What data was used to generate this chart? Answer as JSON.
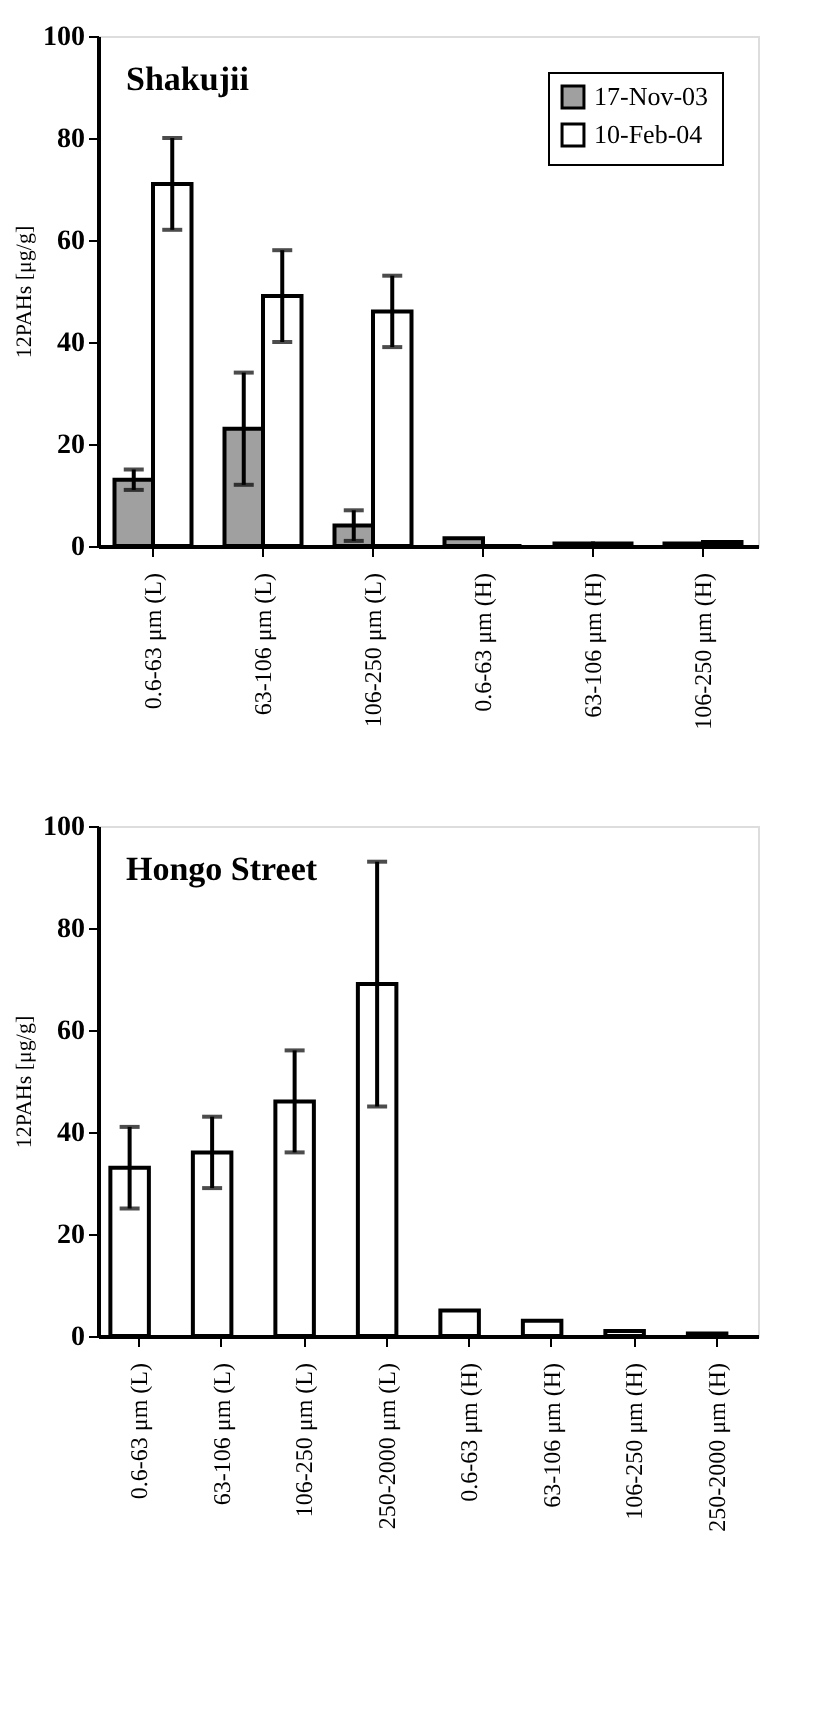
{
  "chart_data": [
    {
      "type": "bar",
      "title": "Shakujii",
      "ylabel": "12PAHs [μg/g]",
      "categories": [
        "0.6-63 μm (L)",
        "63-106 μm (L)",
        "106-250 μm (L)",
        "0.6-63 μm (H)",
        "63-106 μm (H)",
        "106-250 μm (H)"
      ],
      "series": [
        {
          "name": "17-Nov-03",
          "color": "#a0a0a0",
          "values": [
            13,
            23,
            4,
            1.5,
            0.5,
            0.5
          ],
          "errors": [
            2,
            11,
            3,
            null,
            null,
            null
          ]
        },
        {
          "name": "10-Feb-04",
          "color": "#ffffff",
          "values": [
            71,
            49,
            46,
            0,
            0.5,
            0.8
          ],
          "errors": [
            9,
            9,
            7,
            null,
            null,
            null
          ]
        }
      ],
      "ylim": [
        0,
        100
      ],
      "yticks": [
        0,
        20,
        40,
        60,
        80,
        100
      ],
      "grid": false,
      "legend": "top right"
    },
    {
      "type": "bar",
      "title": "Hongo Street",
      "ylabel": "12PAHs [μg/g]",
      "categories": [
        "0.6-63 μm (L)",
        "63-106 μm (L)",
        "106-250 μm (L)",
        "250-2000 μm (L)",
        "0.6-63 μm (H)",
        "63-106 μm (H)",
        "106-250 μm (H)",
        "250-2000 μm (H)"
      ],
      "series": [
        {
          "color": "#ffffff",
          "values": [
            33,
            36,
            46,
            69,
            5,
            3,
            1,
            0.5
          ],
          "errors": [
            8,
            7,
            10,
            24,
            null,
            null,
            null,
            null
          ]
        }
      ],
      "ylim": [
        0,
        100
      ],
      "yticks": [
        0,
        20,
        40,
        60,
        80,
        100
      ],
      "grid": false,
      "legend": false
    }
  ]
}
